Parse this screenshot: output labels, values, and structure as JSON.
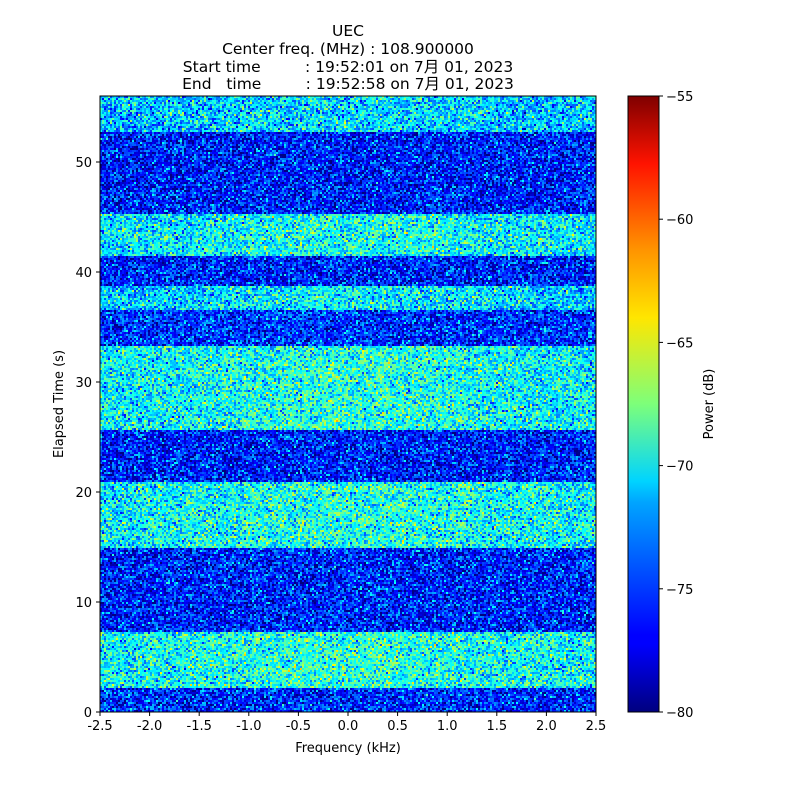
{
  "chart_data": {
    "type": "heatmap",
    "title_lines": [
      "UEC",
      "Center freq. (MHz) : 108.900000",
      "Start time         : 19:52:01 on 7月 01, 2023",
      "End   time         : 19:52:58 on 7月 01, 2023"
    ],
    "xlabel": "Frequency (kHz)",
    "ylabel": "Elapsed Time (s)",
    "colorbar_label": "Power (dB)",
    "xlim": [
      -2.5,
      2.5
    ],
    "ylim": [
      0,
      56
    ],
    "clim": [
      -80,
      -55
    ],
    "colormap": "jet",
    "x_ticks": [
      {
        "value": -2.5,
        "label": "-2.5"
      },
      {
        "value": -2.0,
        "label": "-2.0"
      },
      {
        "value": -1.5,
        "label": "-1.5"
      },
      {
        "value": -1.0,
        "label": "-1.0"
      },
      {
        "value": -0.5,
        "label": "-0.5"
      },
      {
        "value": 0.0,
        "label": "0.0"
      },
      {
        "value": 0.5,
        "label": "0.5"
      },
      {
        "value": 1.0,
        "label": "1.0"
      },
      {
        "value": 1.5,
        "label": "1.5"
      },
      {
        "value": 2.0,
        "label": "2.0"
      },
      {
        "value": 2.5,
        "label": "2.5"
      }
    ],
    "y_ticks": [
      {
        "value": 0,
        "label": "0"
      },
      {
        "value": 10,
        "label": "10"
      },
      {
        "value": 20,
        "label": "20"
      },
      {
        "value": 30,
        "label": "30"
      },
      {
        "value": 40,
        "label": "40"
      },
      {
        "value": 50,
        "label": "50"
      }
    ],
    "colorbar_ticks": [
      {
        "value": -55,
        "label": "−55"
      },
      {
        "value": -60,
        "label": "−60"
      },
      {
        "value": -65,
        "label": "−65"
      },
      {
        "value": -70,
        "label": "−70"
      },
      {
        "value": -75,
        "label": "−75"
      },
      {
        "value": -80,
        "label": "−80"
      }
    ],
    "time_bands": [
      {
        "t_start": 0.0,
        "t_end": 2.2,
        "mean_db": -76.0
      },
      {
        "t_start": 2.2,
        "t_end": 7.2,
        "mean_db": -70.8
      },
      {
        "t_start": 7.2,
        "t_end": 15.0,
        "mean_db": -76.2
      },
      {
        "t_start": 15.0,
        "t_end": 21.0,
        "mean_db": -71.0
      },
      {
        "t_start": 21.0,
        "t_end": 25.6,
        "mean_db": -76.3
      },
      {
        "t_start": 25.6,
        "t_end": 33.3,
        "mean_db": -71.0
      },
      {
        "t_start": 33.3,
        "t_end": 36.5,
        "mean_db": -75.8
      },
      {
        "t_start": 36.5,
        "t_end": 38.7,
        "mean_db": -72.0
      },
      {
        "t_start": 38.7,
        "t_end": 41.5,
        "mean_db": -76.2
      },
      {
        "t_start": 41.5,
        "t_end": 45.2,
        "mean_db": -71.3
      },
      {
        "t_start": 45.2,
        "t_end": 52.7,
        "mean_db": -76.3
      },
      {
        "t_start": 52.7,
        "t_end": 56.0,
        "mean_db": -72.5
      }
    ]
  }
}
